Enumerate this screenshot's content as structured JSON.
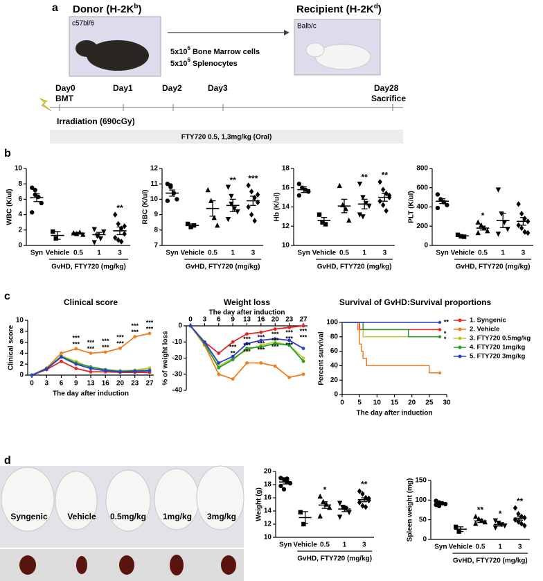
{
  "panels": [
    "a",
    "b",
    "c",
    "d"
  ],
  "panel_a": {
    "donor": {
      "label": "Donor (H-2K",
      "sup": "b",
      "close": ")",
      "strain": "c57bl/6"
    },
    "recipient": {
      "label": "Recipient (H-2K",
      "sup": "d",
      "close": ")",
      "strain": "Balb/c"
    },
    "transfer": [
      {
        "base": "5x10",
        "sup": "6",
        "text": "Bone Marrow cells"
      },
      {
        "base": "5x10",
        "sup": "6",
        "text": "Splenocytes"
      }
    ],
    "timeline": [
      "Day0",
      "Day1",
      "Day2",
      "Day3",
      "Day28"
    ],
    "bmt": "BMT",
    "sacrifice": "Sacrifice",
    "irradiation": "Irradiation (690cGy)",
    "treatment": "FTY720 0.5, 1,3mg/kg (Oral)"
  },
  "panel_d": {
    "labels": [
      "Syngenic",
      "Vehicle",
      "0.5mg/kg",
      "1mg/kg",
      "3mg/kg"
    ]
  },
  "chart_data": [
    {
      "type": "dotplot",
      "ylabel": "WBC (K/ul)",
      "categories": [
        "Syn",
        "Vehicle",
        "0.5",
        "1",
        "3"
      ],
      "group_label": "GvHD, FTY720 (mg/kg)",
      "points": [
        [
          7.5,
          6.6,
          6.3,
          5.5,
          4.3,
          7.2
        ],
        [
          1.8,
          0.9
        ],
        [
          1.6,
          1.5,
          1.7,
          1.4
        ],
        [
          2.1,
          1.2,
          0.9,
          1.8,
          0.4,
          1.3
        ],
        [
          4.0,
          2.8,
          2.2,
          1.5,
          1.0,
          0.7,
          0.5,
          2.5
        ]
      ],
      "means": [
        6.2,
        1.3,
        1.6,
        1.4,
        1.9
      ],
      "errors": [
        0.5,
        0.5,
        0.1,
        0.3,
        0.5
      ],
      "stars": [
        null,
        null,
        null,
        null,
        "**"
      ],
      "markers": [
        "circle",
        "square",
        "triangle",
        "triangle-down",
        "diamond"
      ],
      "color": "#000000",
      "ylim": [
        0,
        10
      ],
      "yticks": [
        0,
        2,
        4,
        6,
        8,
        10
      ]
    },
    {
      "type": "dotplot",
      "ylabel": "RBC (K/ul)",
      "categories": [
        "Syn",
        "Vehicle",
        "0.5",
        "1",
        "3"
      ],
      "group_label": "GvHD, FTY720 (mg/kg)",
      "points": [
        [
          11.0,
          10.8,
          10.4,
          10.0,
          9.9,
          10.9
        ],
        [
          8.4,
          8.2,
          8.3
        ],
        [
          10.6,
          9.9,
          8.8,
          8.3
        ],
        [
          10.8,
          9.7,
          9.4,
          9.2,
          8.7,
          10.2
        ],
        [
          10.9,
          10.5,
          10.1,
          9.8,
          9.5,
          9.0,
          8.6,
          10.3
        ]
      ],
      "means": [
        10.4,
        8.3,
        9.4,
        9.6,
        9.9
      ],
      "errors": [
        0.2,
        0.1,
        0.5,
        0.4,
        0.3
      ],
      "stars": [
        null,
        null,
        null,
        "**",
        "***"
      ],
      "markers": [
        "circle",
        "square",
        "triangle",
        "triangle-down",
        "diamond"
      ],
      "color": "#000000",
      "ylim": [
        7,
        12
      ],
      "yticks": [
        7,
        8,
        9,
        10,
        11,
        12
      ]
    },
    {
      "type": "dotplot",
      "ylabel": "Hb (K/ul)",
      "categories": [
        "Syn",
        "Vehicle",
        "0.5",
        "1",
        "3"
      ],
      "group_label": "GvHD, FTY720 (mg/kg)",
      "points": [
        [
          16.4,
          16.0,
          15.8,
          15.6,
          15.2
        ],
        [
          13.2,
          12.4,
          12.2
        ],
        [
          16.2,
          14.2,
          13.8,
          12.6
        ],
        [
          16.4,
          15.0,
          14.4,
          14.1,
          13.2,
          13.0
        ],
        [
          16.6,
          15.8,
          15.4,
          15.0,
          14.6,
          14.2,
          13.6,
          15.2
        ]
      ],
      "means": [
        15.8,
        12.6,
        14.1,
        14.3,
        15.0
      ],
      "errors": [
        0.3,
        0.3,
        0.7,
        0.5,
        0.4
      ],
      "stars": [
        null,
        null,
        null,
        "**",
        "**"
      ],
      "markers": [
        "circle",
        "square",
        "triangle",
        "triangle-down",
        "diamond"
      ],
      "color": "#000000",
      "ylim": [
        10,
        18
      ],
      "yticks": [
        10,
        12,
        14,
        16,
        18
      ]
    },
    {
      "type": "dotplot",
      "ylabel": "PLT (K/ul)",
      "categories": [
        "Syn",
        "Vehicle",
        "0.5",
        "1",
        "3"
      ],
      "group_label": "GvHD, FTY720 (mg/kg)",
      "points": [
        [
          530,
          480,
          450,
          420,
          390
        ],
        [
          110,
          95,
          90
        ],
        [
          240,
          210,
          180,
          150,
          130
        ],
        [
          580,
          330,
          240,
          170,
          120
        ],
        [
          430,
          330,
          280,
          250,
          210,
          180,
          140,
          130
        ]
      ],
      "means": [
        460,
        100,
        180,
        260,
        250
      ],
      "errors": [
        25,
        8,
        20,
        75,
        40
      ],
      "stars": [
        null,
        null,
        "*",
        null,
        null
      ],
      "markers": [
        "circle",
        "square",
        "triangle",
        "triangle-down",
        "diamond"
      ],
      "color": "#000000",
      "ylim": [
        0,
        800
      ],
      "yticks": [
        0,
        200,
        400,
        600,
        800
      ]
    },
    {
      "type": "line",
      "title": "Clinical score",
      "ylabel": "Clinical score",
      "xlabel": "The day after induction",
      "categories": [
        "0",
        "3",
        "6",
        "9",
        "13",
        "16",
        "20",
        "23",
        "27"
      ],
      "series": [
        {
          "color": "#e8231f",
          "values": [
            0,
            1.0,
            2.5,
            1.2,
            0.6,
            0.6,
            0.5,
            0.5,
            0.5
          ]
        },
        {
          "color": "#f07d1e",
          "values": [
            0,
            1.3,
            4.0,
            4.8,
            4.0,
            4.2,
            4.9,
            7.0,
            7.6
          ]
        },
        {
          "color": "#c4c832",
          "values": [
            0,
            1.2,
            3.5,
            2.5,
            1.3,
            1.0,
            0.8,
            0.9,
            1.3
          ]
        },
        {
          "color": "#23a12a",
          "values": [
            0,
            1.2,
            3.4,
            2.2,
            1.5,
            1.0,
            0.7,
            0.8,
            0.9
          ]
        },
        {
          "color": "#2a3fd1",
          "values": [
            0,
            1.1,
            3.3,
            2.0,
            1.2,
            0.8,
            0.6,
            0.7,
            0.8
          ]
        }
      ],
      "stars": [
        null,
        null,
        null,
        [
          "***",
          "***"
        ],
        [
          "***",
          "***"
        ],
        [
          "***",
          "***"
        ],
        [
          "***",
          "***"
        ],
        [
          "***",
          "***"
        ],
        [
          "***",
          "***"
        ]
      ],
      "ylim": [
        0,
        10
      ],
      "yticks": [
        0,
        2,
        4,
        6,
        8,
        10
      ]
    },
    {
      "type": "line",
      "title": "Weight loss",
      "xlabel": "The day after induction",
      "ylabel": "% of weight loss",
      "xaxis": "top",
      "categories": [
        "0",
        "3",
        "6",
        "9",
        "13",
        "16",
        "20",
        "23",
        "27"
      ],
      "series": [
        {
          "color": "#e8231f",
          "values": [
            0,
            -10,
            -17,
            -10,
            -5,
            -4,
            -2,
            -1,
            0
          ]
        },
        {
          "color": "#f07d1e",
          "values": [
            0,
            -12,
            -30,
            -33,
            -23,
            -23,
            -25,
            -32,
            -30
          ]
        },
        {
          "color": "#c4c832",
          "values": [
            0,
            -11,
            -25,
            -20,
            -15,
            -12,
            -10,
            -12,
            -20
          ]
        },
        {
          "color": "#23a12a",
          "values": [
            0,
            -11,
            -26,
            -21,
            -14,
            -13,
            -11,
            -12,
            -22
          ]
        },
        {
          "color": "#2a3fd1",
          "values": [
            0,
            -10,
            -23,
            -19,
            -11,
            -9,
            -8,
            -9,
            -14
          ]
        }
      ],
      "stars": [
        null,
        null,
        null,
        [
          "***",
          "**"
        ],
        [
          "***",
          "***",
          "***"
        ],
        [
          "***",
          "***",
          "***"
        ],
        [
          "***",
          "***",
          "***"
        ],
        [
          "***",
          "***",
          "***"
        ],
        [
          "***",
          "***"
        ]
      ],
      "ylim": [
        -40,
        0
      ],
      "yticks": [
        -40,
        -30,
        -20,
        -10,
        0
      ]
    },
    {
      "type": "survival",
      "title": "Survival of GvHD:Survival proportions",
      "ylabel": "Percent survival",
      "xlabel": "The day after induction",
      "series": [
        {
          "name": "1. Syngenic",
          "color": "#e8231f",
          "x": [
            0,
            5,
            28
          ],
          "values": [
            100,
            90,
            90
          ]
        },
        {
          "name": "2. Vehicle",
          "color": "#f07d1e",
          "x": [
            0,
            4.5,
            5,
            5.5,
            6,
            7,
            8,
            25,
            28
          ],
          "values": [
            100,
            90,
            70,
            60,
            50,
            40,
            40,
            30,
            30
          ]
        },
        {
          "name": "3. FTY720 0.5mg/kg",
          "color": "#c4c832",
          "x": [
            0,
            6,
            28
          ],
          "values": [
            100,
            80,
            80
          ],
          "end_label": "*"
        },
        {
          "name": "4. FTY720 1mg/kg",
          "color": "#23a12a",
          "x": [
            0,
            6,
            19,
            28
          ],
          "values": [
            100,
            90,
            80,
            80
          ],
          "end_label": "*"
        },
        {
          "name": "5. FTY720 3mg/kg",
          "color": "#2a3fd1",
          "x": [
            0,
            28
          ],
          "values": [
            100,
            100
          ],
          "end_label": "**"
        }
      ],
      "xlim": [
        0,
        30
      ],
      "xticks": [
        0,
        5,
        10,
        15,
        20,
        25,
        30
      ],
      "ylim": [
        0,
        100
      ],
      "yticks": [
        0,
        20,
        40,
        60,
        80,
        100
      ]
    },
    {
      "type": "dotplot",
      "ylabel": "Weight (g)",
      "categories": [
        "Syn",
        "Vehicle",
        "0.5",
        "1",
        "3"
      ],
      "group_label": "GvHD, FTY720 (mg/kg)",
      "points": [
        [
          19.0,
          18.8,
          18.5,
          18.2,
          17.8,
          17.3,
          18.9
        ],
        [
          13.8,
          12.0
        ],
        [
          16.2,
          15.4,
          15.0,
          14.5,
          13.2
        ],
        [
          15.2,
          14.6,
          14.3,
          13.8,
          13.1,
          14.5
        ],
        [
          17.0,
          16.6,
          16.0,
          15.6,
          15.3,
          14.8,
          14.6,
          15.9
        ]
      ],
      "means": [
        18.4,
        13.0,
        14.9,
        14.3,
        15.7
      ],
      "errors": [
        0.3,
        0.9,
        0.5,
        0.4,
        0.3
      ],
      "stars": [
        null,
        null,
        "*",
        null,
        "**"
      ],
      "markers": [
        "circle",
        "square",
        "triangle",
        "triangle-down",
        "diamond"
      ],
      "color": "#000000",
      "ylim": [
        10,
        20
      ],
      "yticks": [
        10,
        12,
        14,
        16,
        18,
        20
      ]
    },
    {
      "type": "dotplot",
      "ylabel": "Spleen weight (mg)",
      "categories": [
        "Syn",
        "Vehicle",
        "0.5",
        "1",
        "3"
      ],
      "group_label": "GvHD, FTY720 (mg/kg)",
      "points": [
        [
          98,
          94,
          92,
          90,
          88,
          85
        ],
        [
          32,
          20
        ],
        [
          58,
          52,
          48,
          44,
          40
        ],
        [
          48,
          42,
          38,
          35,
          30
        ],
        [
          80,
          65,
          58,
          55,
          50,
          45,
          40,
          35
        ]
      ],
      "means": [
        91,
        26,
        47,
        38,
        54
      ],
      "errors": [
        2,
        6,
        4,
        4,
        5
      ],
      "stars": [
        null,
        null,
        "**",
        "*",
        "**"
      ],
      "markers": [
        "circle",
        "square",
        "triangle",
        "triangle-down",
        "diamond"
      ],
      "color": "#000000",
      "ylim": [
        0,
        150
      ],
      "yticks": [
        0,
        50,
        100,
        150
      ]
    }
  ]
}
